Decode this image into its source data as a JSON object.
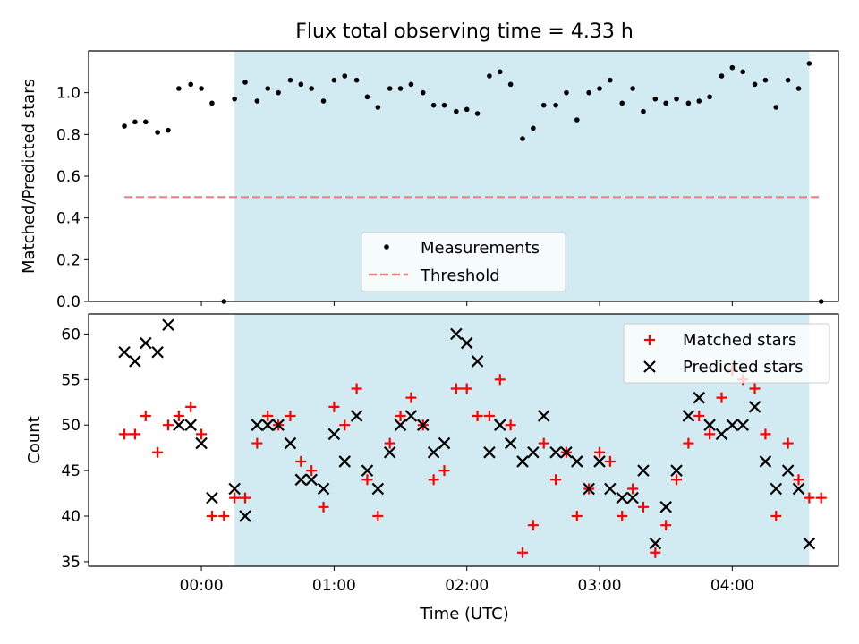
{
  "title": "Flux total observing time = 4.33 h",
  "colors": {
    "shade": "#ADD8E6",
    "threshold": "#F08080",
    "matched": "#FF0000",
    "predicted": "#000000",
    "measure": "#000000"
  },
  "chart_data": [
    {
      "type": "scatter",
      "ylabel": "Matched/Predicted stars",
      "xlim": [
        -0.85,
        4.8
      ],
      "ylim": [
        0,
        1.2
      ],
      "yticks": [
        "0.0",
        "0.2",
        "0.4",
        "0.6",
        "0.8",
        "1.0"
      ],
      "yticks_values": [
        0,
        0.2,
        0.4,
        0.6,
        0.8,
        1.0
      ],
      "shaded_span": [
        0.25,
        4.58
      ],
      "legend": {
        "placement": "lower center",
        "entries": [
          "Measurements",
          "Threshold"
        ]
      },
      "threshold": {
        "name": "Threshold",
        "value": 0.5,
        "x_range": [
          -0.58,
          4.67
        ]
      },
      "series": [
        {
          "name": "Measurements",
          "x": [
            -0.58,
            -0.5,
            -0.42,
            -0.33,
            -0.25,
            -0.17,
            -0.08,
            0.0,
            0.08,
            0.17,
            0.25,
            0.33,
            0.42,
            0.5,
            0.58,
            0.67,
            0.75,
            0.83,
            0.92,
            1.0,
            1.08,
            1.17,
            1.25,
            1.33,
            1.42,
            1.5,
            1.58,
            1.67,
            1.75,
            1.83,
            1.92,
            2.0,
            2.08,
            2.17,
            2.25,
            2.33,
            2.42,
            2.5,
            2.58,
            2.67,
            2.75,
            2.83,
            2.92,
            3.0,
            3.08,
            3.17,
            3.25,
            3.33,
            3.42,
            3.5,
            3.58,
            3.67,
            3.75,
            3.83,
            3.92,
            4.0,
            4.08,
            4.17,
            4.25,
            4.33,
            4.42,
            4.5,
            4.58,
            4.67
          ],
          "y": [
            0.84,
            0.86,
            0.86,
            0.81,
            0.82,
            1.02,
            1.04,
            1.02,
            0.95,
            0.0,
            0.97,
            1.05,
            0.96,
            1.02,
            1.0,
            1.06,
            1.04,
            1.02,
            0.96,
            1.06,
            1.08,
            1.06,
            0.98,
            0.93,
            1.02,
            1.02,
            1.04,
            1.0,
            0.94,
            0.94,
            0.91,
            0.92,
            0.9,
            1.08,
            1.1,
            1.04,
            0.78,
            0.83,
            0.94,
            0.94,
            1.0,
            0.87,
            1.0,
            1.02,
            1.06,
            0.95,
            1.02,
            0.91,
            0.97,
            0.95,
            0.97,
            0.95,
            0.96,
            0.98,
            1.08,
            1.12,
            1.1,
            1.04,
            1.06,
            0.93,
            1.06,
            1.02,
            1.14,
            0.0
          ]
        }
      ]
    },
    {
      "type": "scatter",
      "ylabel": "Count",
      "xlabel": "Time (UTC)",
      "xlim": [
        -0.85,
        4.8
      ],
      "ylim": [
        34.5,
        62.2
      ],
      "yticks": [
        "35",
        "40",
        "45",
        "50",
        "55",
        "60"
      ],
      "yticks_values": [
        35,
        40,
        45,
        50,
        55,
        60
      ],
      "xticks": [
        "00:00",
        "01:00",
        "02:00",
        "03:00",
        "04:00"
      ],
      "xticks_values": [
        0,
        1,
        2,
        3,
        4
      ],
      "shaded_span": [
        0.25,
        4.58
      ],
      "legend": {
        "placement": "upper right",
        "entries": [
          "Matched stars",
          "Predicted stars"
        ]
      },
      "series": [
        {
          "name": "Matched stars",
          "marker": "+",
          "x": [
            -0.58,
            -0.5,
            -0.42,
            -0.33,
            -0.25,
            -0.17,
            -0.08,
            0.0,
            0.08,
            0.17,
            0.25,
            0.33,
            0.42,
            0.5,
            0.58,
            0.67,
            0.75,
            0.83,
            0.92,
            1.0,
            1.08,
            1.17,
            1.25,
            1.33,
            1.42,
            1.5,
            1.58,
            1.67,
            1.75,
            1.83,
            1.92,
            2.0,
            2.08,
            2.17,
            2.25,
            2.33,
            2.42,
            2.5,
            2.58,
            2.67,
            2.75,
            2.83,
            2.92,
            3.0,
            3.08,
            3.17,
            3.25,
            3.33,
            3.42,
            3.5,
            3.58,
            3.67,
            3.75,
            3.83,
            3.92,
            4.0,
            4.08,
            4.17,
            4.25,
            4.33,
            4.42,
            4.5,
            4.58,
            4.67
          ],
          "y": [
            49,
            49,
            51,
            47,
            50,
            51,
            52,
            49,
            40,
            40,
            42,
            42,
            48,
            51,
            50,
            51,
            46,
            45,
            41,
            52,
            50,
            54,
            44,
            40,
            48,
            51,
            53,
            50,
            44,
            45,
            54,
            54,
            51,
            51,
            55,
            50,
            36,
            39,
            48,
            44,
            47,
            40,
            43,
            47,
            46,
            40,
            43,
            41,
            36,
            39,
            44,
            48,
            51,
            49,
            53,
            56,
            55,
            54,
            49,
            40,
            48,
            44,
            42,
            42
          ]
        },
        {
          "name": "Predicted stars",
          "marker": "x",
          "x": [
            -0.58,
            -0.5,
            -0.42,
            -0.33,
            -0.25,
            -0.17,
            -0.08,
            0.0,
            0.08,
            0.25,
            0.33,
            0.42,
            0.5,
            0.58,
            0.67,
            0.75,
            0.83,
            0.92,
            1.0,
            1.08,
            1.17,
            1.25,
            1.33,
            1.42,
            1.5,
            1.58,
            1.67,
            1.75,
            1.83,
            1.92,
            2.0,
            2.08,
            2.17,
            2.25,
            2.33,
            2.42,
            2.5,
            2.58,
            2.67,
            2.75,
            2.83,
            2.92,
            3.0,
            3.08,
            3.17,
            3.25,
            3.33,
            3.42,
            3.5,
            3.58,
            3.67,
            3.75,
            3.83,
            3.92,
            4.0,
            4.08,
            4.17,
            4.25,
            4.33,
            4.42,
            4.5,
            4.58
          ],
          "y": [
            58,
            57,
            59,
            58,
            61,
            50,
            50,
            48,
            42,
            43,
            40,
            50,
            50,
            50,
            48,
            44,
            44,
            43,
            49,
            46,
            51,
            45,
            43,
            47,
            50,
            51,
            50,
            47,
            48,
            60,
            59,
            57,
            47,
            50,
            48,
            46,
            47,
            51,
            47,
            47,
            46,
            43,
            46,
            43,
            42,
            42,
            45,
            37,
            41,
            45,
            51,
            53,
            50,
            49,
            50,
            50,
            52,
            46,
            43,
            45,
            43,
            37
          ]
        }
      ]
    }
  ]
}
